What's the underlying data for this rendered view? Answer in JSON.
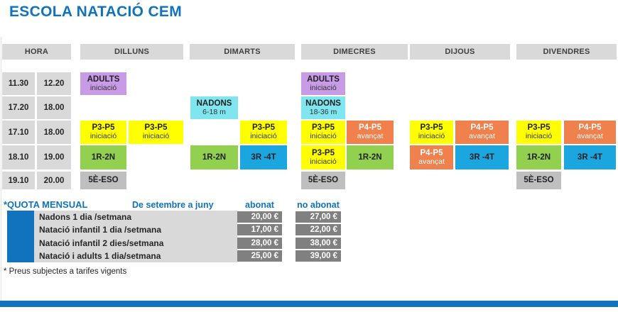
{
  "title": "ESCOLA NATACIÓ CEM",
  "colors": {
    "accent": "#1173BE",
    "adults": "#C89BE6",
    "nadons": "#7FE6F0",
    "iniciacio": "#FFFF00",
    "avancat": "#F0804C",
    "primaria12": "#92D050",
    "primaria34": "#1CA6E0",
    "eso": "#BFBFBF",
    "header_gray": "#D9D9D9",
    "price_dark": "#808080",
    "price_light": "#D9D9D9"
  },
  "schedule": {
    "hora_header": "HORA",
    "days": [
      "DILLUNS",
      "DIMARTS",
      "DIMECRES",
      "DIJOUS",
      "DIVENDRES"
    ],
    "time_rows": [
      [
        "11.30",
        "12.20"
      ],
      [
        "17.20",
        "18.00"
      ],
      [
        "17.10",
        "18.00"
      ],
      [
        "18.10",
        "19.00"
      ],
      [
        "19.10",
        "20.00"
      ]
    ],
    "cells": [
      {
        "day": 0,
        "row": 0,
        "slot": 0,
        "title": "ADULTS",
        "subtitle": "iniciació",
        "type": "adults"
      },
      {
        "day": 2,
        "row": 0,
        "slot": 0,
        "title": "ADULTS",
        "subtitle": "iniciació",
        "type": "adults"
      },
      {
        "day": 1,
        "row": 1,
        "slot": 0,
        "title": "NADONS",
        "subtitle": "6-18 m",
        "type": "nadons"
      },
      {
        "day": 2,
        "row": 1,
        "slot": 0,
        "title": "NADONS",
        "subtitle": "18-36 m",
        "type": "nadons"
      },
      {
        "day": 0,
        "row": 2,
        "slot": 0,
        "title": "P3-P5",
        "subtitle": "iniciació",
        "type": "iniciacio"
      },
      {
        "day": 0,
        "row": 2,
        "slot": 1,
        "title": "P3-P5",
        "subtitle": "iniciació",
        "type": "iniciacio"
      },
      {
        "day": 1,
        "row": 2,
        "slot": 1,
        "title": "P3-P5",
        "subtitle": "iniciació",
        "type": "iniciacio"
      },
      {
        "day": 2,
        "row": 2,
        "slot": 0,
        "title": "P3-P5",
        "subtitle": "iniciació",
        "type": "iniciacio"
      },
      {
        "day": 2,
        "row": 2,
        "slot": 1,
        "title": "P4-P5",
        "subtitle": "avançat",
        "type": "avancat"
      },
      {
        "day": 3,
        "row": 2,
        "slot": 0,
        "title": "P3-P5",
        "subtitle": "iniciació",
        "type": "iniciacio"
      },
      {
        "day": 3,
        "row": 2,
        "slot": 1,
        "title": "P4-P5",
        "subtitle": "avançat",
        "type": "avancat"
      },
      {
        "day": 4,
        "row": 2,
        "slot": 0,
        "title": "P3-P5",
        "subtitle": "iniciació",
        "type": "iniciacio"
      },
      {
        "day": 4,
        "row": 2,
        "slot": 1,
        "title": "P4-P5",
        "subtitle": "avançat",
        "type": "avancat"
      },
      {
        "day": 0,
        "row": 3,
        "slot": 0,
        "title": "1R-2N",
        "type": "primaria12"
      },
      {
        "day": 1,
        "row": 3,
        "slot": 0,
        "title": "1R-2N",
        "type": "primaria12"
      },
      {
        "day": 1,
        "row": 3,
        "slot": 1,
        "title": "3R -4T",
        "type": "primaria34"
      },
      {
        "day": 2,
        "row": 3,
        "slot": 0,
        "title": "P3-P5",
        "subtitle": "iniciació",
        "type": "iniciacio"
      },
      {
        "day": 2,
        "row": 3,
        "slot": 1,
        "title": "1R-2N",
        "type": "primaria12"
      },
      {
        "day": 3,
        "row": 3,
        "slot": 0,
        "title": "P4-P5",
        "subtitle": "avançat",
        "type": "avancat"
      },
      {
        "day": 3,
        "row": 3,
        "slot": 1,
        "title": "3R -4T",
        "type": "primaria34"
      },
      {
        "day": 4,
        "row": 3,
        "slot": 0,
        "title": "1R-2N",
        "type": "primaria12"
      },
      {
        "day": 4,
        "row": 3,
        "slot": 1,
        "title": "3R -4T",
        "type": "primaria34"
      },
      {
        "day": 0,
        "row": 4,
        "slot": 0,
        "title": "5È-ESO",
        "type": "eso"
      },
      {
        "day": 2,
        "row": 4,
        "slot": 0,
        "title": "5È-ESO",
        "type": "eso"
      },
      {
        "day": 4,
        "row": 4,
        "slot": 0,
        "title": "5È-ESO",
        "type": "eso"
      }
    ]
  },
  "pricing": {
    "quota_title": "*QUOTA MENSUAL",
    "period_label": "De setembre a juny",
    "abonat_header": "abonat",
    "no_abonat_header": "no abonat",
    "rows": [
      {
        "label": "Nadons 1 dia /setmana",
        "abonat": "20,00 €",
        "no_abonat": "27,00 €"
      },
      {
        "label": "Natació infantil 1 dia /setmana",
        "abonat": "17,00 €",
        "no_abonat": "22,00 €"
      },
      {
        "label": "Natació infantil 2 dies/setmana",
        "abonat": "28,00 €",
        "no_abonat": "38,00 €"
      },
      {
        "label": "Natació i adults 1 dia/setmana",
        "abonat": "25,00 €",
        "no_abonat": "39,00 €"
      }
    ]
  },
  "footnote": "* Preus subjectes a tarifes vigents"
}
